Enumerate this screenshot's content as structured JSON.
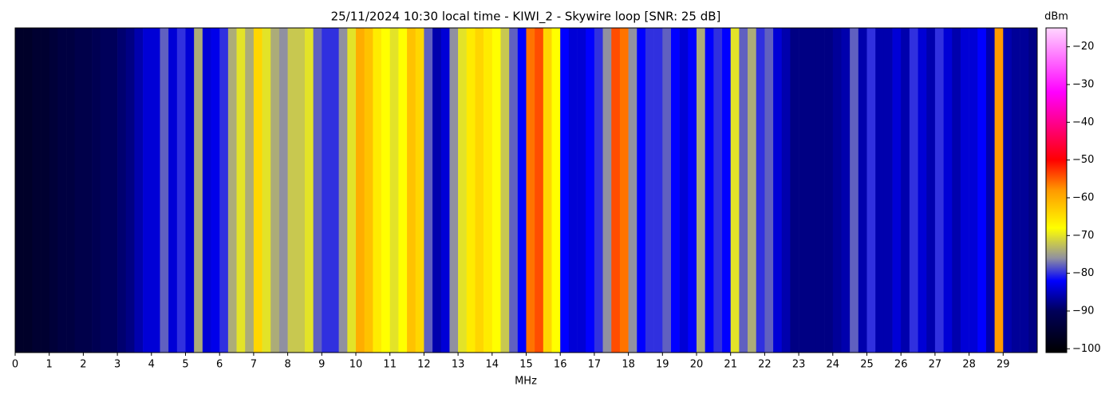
{
  "chart_data": {
    "type": "heatmap",
    "title": "25/11/2024 10:30 local time - KIWI_2 - Skywire loop [SNR: 25 dB]",
    "xlabel": "MHz",
    "colorbar_label": "dBm",
    "xlim": [
      0,
      30
    ],
    "xticks": [
      0,
      1,
      2,
      3,
      4,
      5,
      6,
      7,
      8,
      9,
      10,
      11,
      12,
      13,
      14,
      15,
      16,
      17,
      18,
      19,
      20,
      21,
      22,
      23,
      24,
      25,
      26,
      27,
      28,
      29
    ],
    "clim": [
      -101,
      -15
    ],
    "cticks": [
      {
        "value": -20,
        "label": "−20"
      },
      {
        "value": -30,
        "label": "−30"
      },
      {
        "value": -40,
        "label": "−40"
      },
      {
        "value": -50,
        "label": "−50"
      },
      {
        "value": -60,
        "label": "−60"
      },
      {
        "value": -70,
        "label": "−70"
      },
      {
        "value": -80,
        "label": "−80"
      },
      {
        "value": -90,
        "label": "−90"
      },
      {
        "value": -100,
        "label": "−100"
      }
    ],
    "colormap": [
      {
        "value": -101,
        "color": "#000000"
      },
      {
        "value": -90,
        "color": "#00005a"
      },
      {
        "value": -82,
        "color": "#0000ff"
      },
      {
        "value": -76,
        "color": "#9090a0"
      },
      {
        "value": -68,
        "color": "#ffff00"
      },
      {
        "value": -58,
        "color": "#ff9900"
      },
      {
        "value": -50,
        "color": "#ff0000"
      },
      {
        "value": -32,
        "color": "#ff00ff"
      },
      {
        "value": -15,
        "color": "#ffd6ff"
      }
    ],
    "values": [
      -96,
      -96,
      -95,
      -95,
      -94,
      -93,
      -93,
      -92,
      -92,
      -91,
      -90,
      -90,
      -89,
      -88,
      -86,
      -84,
      -84,
      -78,
      -84,
      -80,
      -84,
      -74,
      -84,
      -83,
      -80,
      -74,
      -70,
      -74,
      -64,
      -70,
      -74,
      -76,
      -72,
      -72,
      -70,
      -78,
      -80,
      -80,
      -76,
      -70,
      -60,
      -62,
      -66,
      -68,
      -70,
      -68,
      -62,
      -64,
      -78,
      -86,
      -84,
      -76,
      -70,
      -66,
      -64,
      -66,
      -68,
      -72,
      -78,
      -82,
      -56,
      -54,
      -64,
      -68,
      -82,
      -84,
      -84,
      -82,
      -80,
      -76,
      -54,
      -56,
      -76,
      -82,
      -80,
      -80,
      -78,
      -82,
      -84,
      -82,
      -74,
      -82,
      -80,
      -82,
      -70,
      -78,
      -74,
      -80,
      -78,
      -84,
      -86,
      -88,
      -88,
      -88,
      -88,
      -88,
      -87,
      -86,
      -78,
      -86,
      -80,
      -86,
      -86,
      -84,
      -86,
      -80,
      -84,
      -86,
      -80,
      -84,
      -86,
      -84,
      -84,
      -82,
      -86,
      -58,
      -86,
      -87,
      -87,
      -88
    ]
  }
}
